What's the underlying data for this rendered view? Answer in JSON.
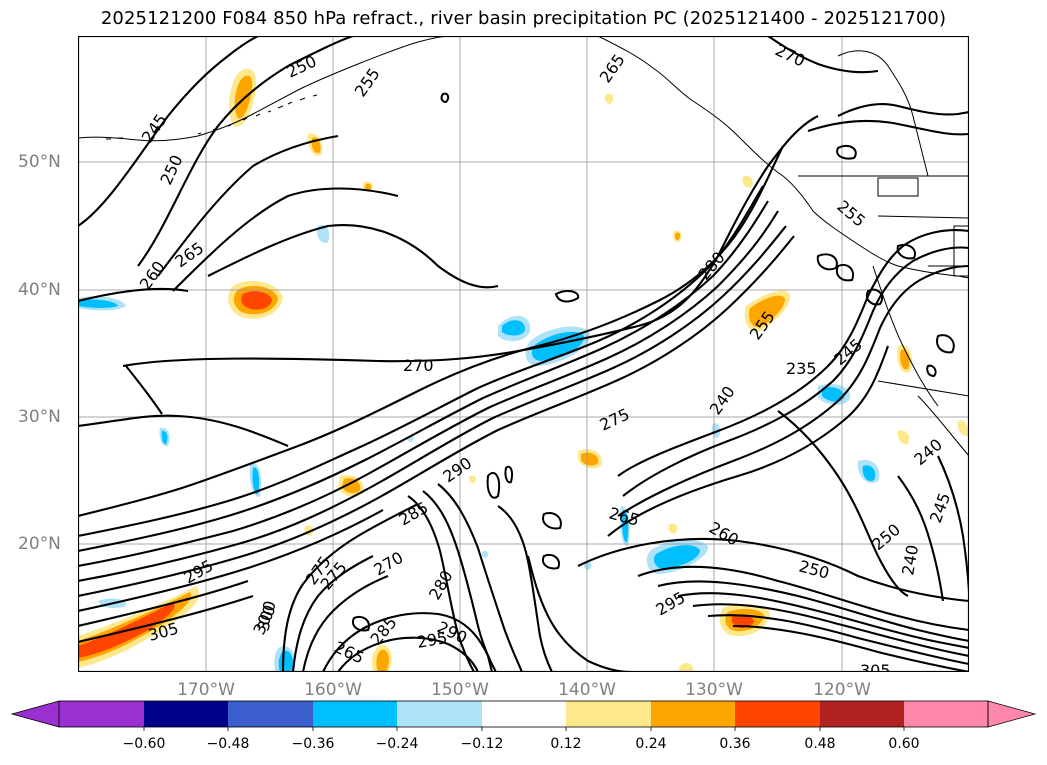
{
  "title": "2025121200 F084 850 hPa refract., river basin precipitation PC (2025121400 - 2025121700)",
  "lat_labels": [
    "50°N",
    "40°N",
    "30°N",
    "20°N"
  ],
  "lon_labels": [
    "170°W",
    "160°W",
    "150°W",
    "140°W",
    "130°W",
    "120°W"
  ],
  "colorbar": {
    "ticks": [
      "−0.60",
      "−0.48",
      "−0.36",
      "−0.24",
      "−0.12",
      "0.12",
      "0.24",
      "0.36",
      "0.48",
      "0.60"
    ],
    "colors": [
      "#9b30d0",
      "#00008b",
      "#3a5fcd",
      "#00bfff",
      "#aee2f8",
      "#ffffff",
      "#fde98b",
      "#ffa500",
      "#ff4500",
      "#b22222",
      "#ff88aa",
      "#ff88aa"
    ]
  },
  "contour_labels": [
    "245",
    "250",
    "250",
    "260",
    "265",
    "255",
    "265",
    "270",
    "270",
    "275",
    "280",
    "285",
    "290",
    "295",
    "300",
    "305",
    "235",
    "240",
    "245",
    "250",
    "255",
    "260",
    "265",
    "275",
    "280",
    "300",
    "305",
    "295",
    "290",
    "250",
    "240",
    "240",
    "245",
    "265",
    "275",
    "270",
    "295",
    "255",
    "285"
  ]
}
